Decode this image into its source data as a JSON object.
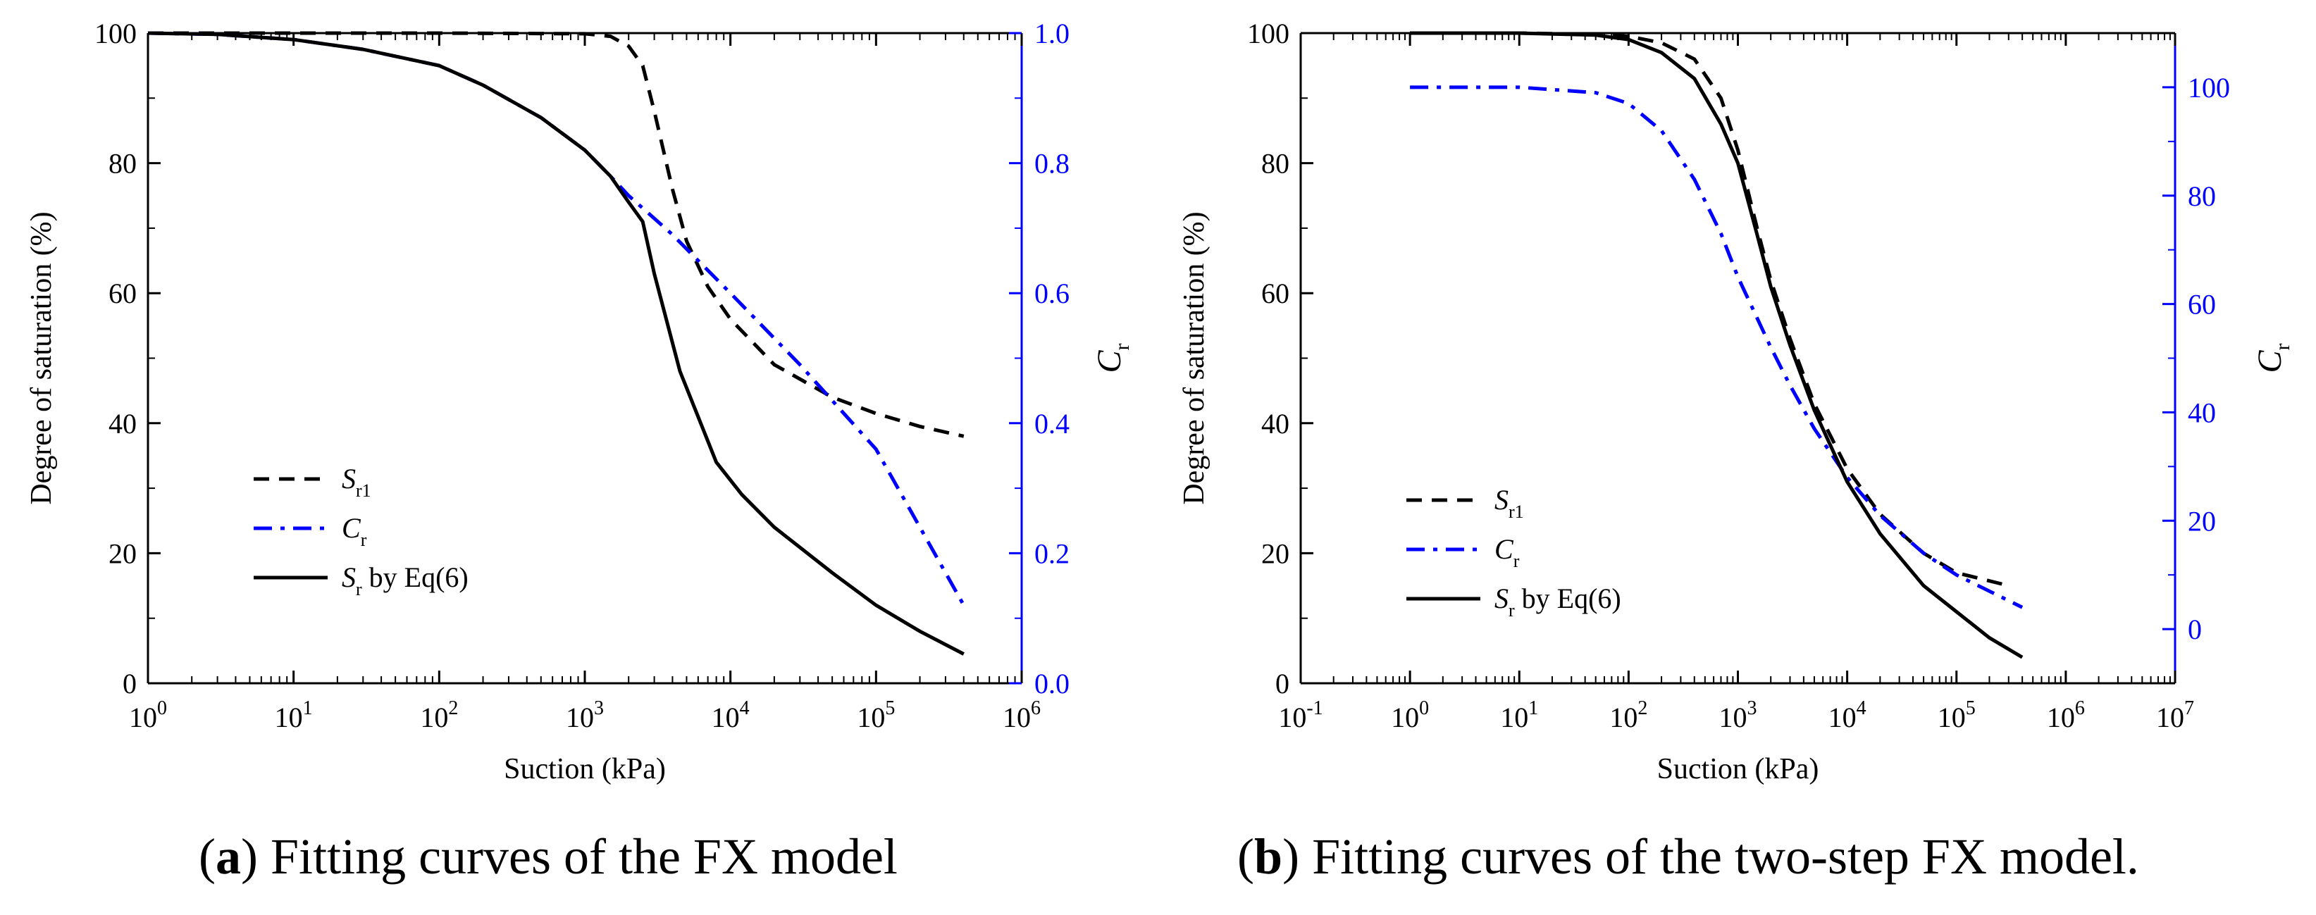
{
  "colors": {
    "axis": "#000000",
    "cr_axis": "#0000ff",
    "sr1_line": "#000000",
    "cr_line": "#0000ff",
    "sr_line": "#000000"
  },
  "chart_data": [
    {
      "type": "line",
      "panel": "a",
      "caption": {
        "letter": "a",
        "text": "Fitting curves of the FX model"
      },
      "xscale": "log",
      "xlim_exp": [
        0,
        6
      ],
      "x_tick_labels": [
        "10^0",
        "10^1",
        "10^2",
        "10^3",
        "10^4",
        "10^5",
        "10^6"
      ],
      "xlabel": "Suction (kPa)",
      "ylabel": "Degree of saturation (%)",
      "ylim": [
        0,
        100
      ],
      "y_ticks": [
        0,
        20,
        40,
        60,
        80,
        100
      ],
      "y2label": {
        "main": "C",
        "sub": "r"
      },
      "y2lim": [
        0.0,
        1.0
      ],
      "y2_ticks": [
        "0.0",
        "0.2",
        "0.4",
        "0.6",
        "0.8",
        "1.0"
      ],
      "legend": {
        "position": "lower-left",
        "entries": [
          {
            "series": "Sr1",
            "main": "S",
            "sub": "r1",
            "suffix": ""
          },
          {
            "series": "Cr",
            "main": "C",
            "sub": "r",
            "suffix": ""
          },
          {
            "series": "Sr",
            "main": "S",
            "sub": "r",
            "suffix": " by Eq(6)"
          }
        ]
      },
      "series": [
        {
          "name": "Sr1",
          "style": "dashed",
          "axis": "left",
          "points": [
            [
              1,
              100
            ],
            [
              10,
              100
            ],
            [
              100,
              100
            ],
            [
              1000,
              99.9
            ],
            [
              1500,
              99.5
            ],
            [
              2000,
              98
            ],
            [
              2500,
              95
            ],
            [
              3000,
              88
            ],
            [
              4000,
              76
            ],
            [
              5000,
              68
            ],
            [
              7000,
              61
            ],
            [
              10000,
              56
            ],
            [
              20000,
              49
            ],
            [
              50000,
              44
            ],
            [
              100000,
              41.5
            ],
            [
              200000,
              39.5
            ],
            [
              400000,
              38
            ]
          ]
        },
        {
          "name": "Cr",
          "style": "dashdot",
          "axis": "right",
          "points": [
            [
              1,
              1.0
            ],
            [
              3,
              0.998
            ],
            [
              10,
              0.99
            ],
            [
              30,
              0.975
            ],
            [
              100,
              0.95
            ],
            [
              200,
              0.92
            ],
            [
              500,
              0.87
            ],
            [
              1000,
              0.82
            ],
            [
              1500,
              0.78
            ],
            [
              2000,
              0.75
            ],
            [
              4000,
              0.69
            ],
            [
              10000,
              0.6
            ],
            [
              30000,
              0.49
            ],
            [
              100000,
              0.36
            ],
            [
              400000,
              0.12
            ]
          ]
        },
        {
          "name": "Sr",
          "style": "solid",
          "axis": "left",
          "points": [
            [
              1,
              100
            ],
            [
              3,
              99.8
            ],
            [
              10,
              99
            ],
            [
              30,
              97.5
            ],
            [
              100,
              95
            ],
            [
              200,
              92
            ],
            [
              500,
              87
            ],
            [
              1000,
              82
            ],
            [
              1500,
              78
            ],
            [
              2000,
              74
            ],
            [
              2500,
              71
            ],
            [
              3000,
              63
            ],
            [
              4500,
              48
            ],
            [
              6000,
              41
            ],
            [
              8000,
              34
            ],
            [
              12000,
              29
            ],
            [
              20000,
              24
            ],
            [
              50000,
              17
            ],
            [
              100000,
              12
            ],
            [
              200000,
              8
            ],
            [
              400000,
              4.5
            ]
          ]
        }
      ]
    },
    {
      "type": "line",
      "panel": "b",
      "caption": {
        "letter": "b",
        "text": "Fitting curves of the two-step FX model."
      },
      "xscale": "log",
      "xlim_exp": [
        -1,
        7
      ],
      "x_tick_labels": [
        "10^-1",
        "10^0",
        "10^1",
        "10^2",
        "10^3",
        "10^4",
        "10^5",
        "10^6",
        "10^7"
      ],
      "xlabel": "Suction (kPa)",
      "ylabel": "Degree of saturation (%)",
      "ylim": [
        0,
        100
      ],
      "y_ticks": [
        0,
        20,
        40,
        60,
        80,
        100
      ],
      "y2label": {
        "main": "C",
        "sub": "r"
      },
      "y2lim": [
        -10,
        110
      ],
      "y2_ticks": [
        "0",
        "20",
        "40",
        "60",
        "80",
        "100"
      ],
      "legend": {
        "position": "lower-left",
        "entries": [
          {
            "series": "Sr1",
            "main": "S",
            "sub": "r1",
            "suffix": ""
          },
          {
            "series": "Cr",
            "main": "C",
            "sub": "r",
            "suffix": ""
          },
          {
            "series": "Sr",
            "main": "S",
            "sub": "r",
            "suffix": " by Eq(6)"
          }
        ]
      },
      "series": [
        {
          "name": "Sr1",
          "style": "dashed",
          "axis": "left",
          "points": [
            [
              1,
              100
            ],
            [
              10,
              100
            ],
            [
              50,
              99.8
            ],
            [
              100,
              99.5
            ],
            [
              200,
              98.5
            ],
            [
              400,
              96
            ],
            [
              700,
              90
            ],
            [
              1000,
              82
            ],
            [
              1500,
              70
            ],
            [
              2000,
              62
            ],
            [
              3000,
              53
            ],
            [
              5000,
              43
            ],
            [
              10000,
              33
            ],
            [
              20000,
              26
            ],
            [
              50000,
              20
            ],
            [
              100000,
              17
            ],
            [
              300000,
              15
            ]
          ]
        },
        {
          "name": "Cr",
          "style": "dashdot",
          "axis": "right",
          "points": [
            [
              1,
              100
            ],
            [
              10,
              100
            ],
            [
              50,
              99
            ],
            [
              100,
              97
            ],
            [
              200,
              92
            ],
            [
              400,
              83
            ],
            [
              700,
              73
            ],
            [
              1000,
              65
            ],
            [
              2000,
              52
            ],
            [
              3000,
              45
            ],
            [
              5000,
              37
            ],
            [
              10000,
              28
            ],
            [
              20000,
              21
            ],
            [
              50000,
              14
            ],
            [
              100000,
              10
            ],
            [
              200000,
              7
            ],
            [
              400000,
              4
            ]
          ]
        },
        {
          "name": "Sr",
          "style": "solid",
          "axis": "left",
          "points": [
            [
              1,
              100
            ],
            [
              10,
              100
            ],
            [
              50,
              99.7
            ],
            [
              100,
              99
            ],
            [
              200,
              97
            ],
            [
              400,
              93
            ],
            [
              700,
              86
            ],
            [
              1000,
              80
            ],
            [
              1500,
              69
            ],
            [
              2000,
              61
            ],
            [
              3000,
              52
            ],
            [
              5000,
              42
            ],
            [
              10000,
              31
            ],
            [
              20000,
              23
            ],
            [
              50000,
              15
            ],
            [
              100000,
              11
            ],
            [
              200000,
              7
            ],
            [
              400000,
              4
            ]
          ]
        }
      ]
    }
  ]
}
